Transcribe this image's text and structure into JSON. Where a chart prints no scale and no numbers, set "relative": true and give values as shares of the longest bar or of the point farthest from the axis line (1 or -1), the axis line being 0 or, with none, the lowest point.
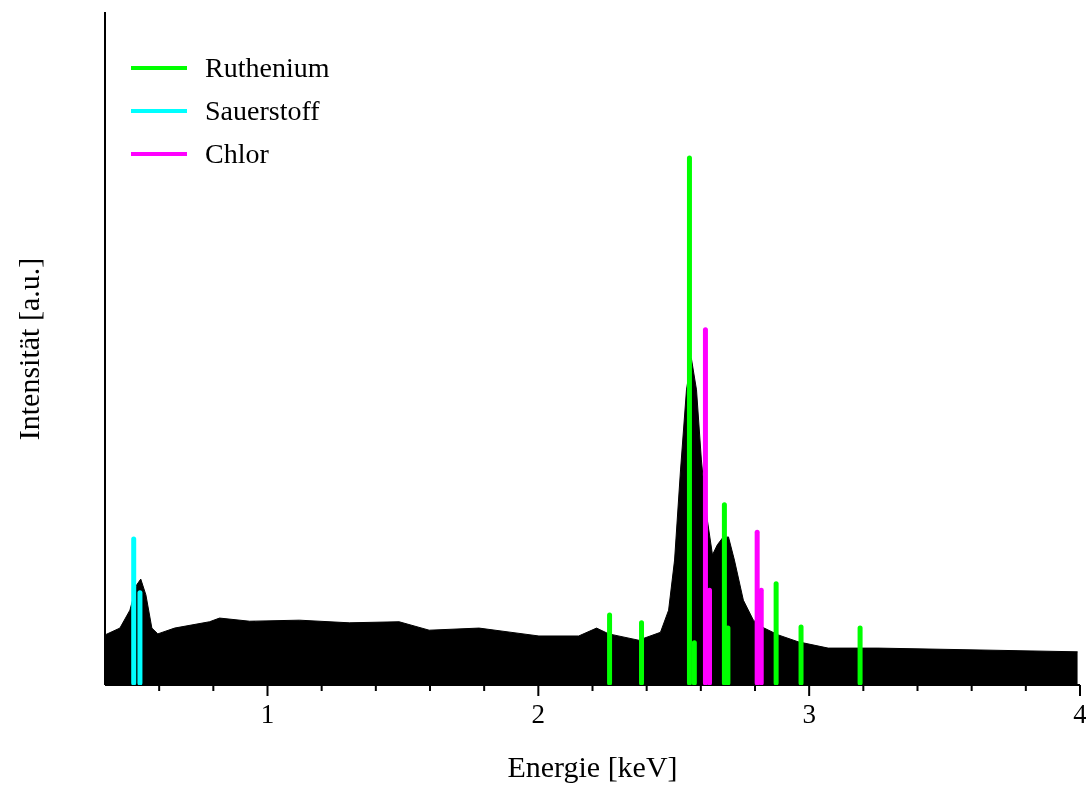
{
  "chart_data": {
    "type": "bar",
    "relative": true,
    "xlabel": "Energie [keV]",
    "ylabel": "Intensität [a.u.]",
    "xlim": [
      0.4,
      4
    ],
    "xticks": [
      {
        "value": 0.6,
        "label": null
      },
      {
        "value": 0.8,
        "label": null
      },
      1,
      {
        "value": 1.2,
        "label": null
      },
      {
        "value": 1.4,
        "label": null
      },
      {
        "value": 1.6,
        "label": null
      },
      {
        "value": 1.8,
        "label": null
      },
      2,
      {
        "value": 2.2,
        "label": null
      },
      {
        "value": 2.4,
        "label": null
      },
      {
        "value": 2.6,
        "label": null
      },
      {
        "value": 2.8,
        "label": null
      },
      3,
      {
        "value": 3.2,
        "label": null
      },
      {
        "value": 3.4,
        "label": null
      },
      {
        "value": 3.6,
        "label": null
      },
      {
        "value": 3.8,
        "label": null
      },
      4
    ],
    "legend": "top left",
    "grid": false,
    "series": [
      {
        "type": "area",
        "color": "#000000",
        "x": [
          0.4,
          0.455,
          0.492,
          0.517,
          0.532,
          0.551,
          0.573,
          0.595,
          0.657,
          0.786,
          0.823,
          0.934,
          1.118,
          1.302,
          1.486,
          1.597,
          1.781,
          2.002,
          2.149,
          2.215,
          2.26,
          2.37,
          2.451,
          2.481,
          2.503,
          2.525,
          2.547,
          2.565,
          2.584,
          2.602,
          2.624,
          2.643,
          2.661,
          2.68,
          2.702,
          2.724,
          2.757,
          2.794,
          2.834,
          2.886,
          2.959,
          3.07,
          3.254,
          3.991
        ],
        "values": [
          0.095,
          0.108,
          0.142,
          0.19,
          0.201,
          0.171,
          0.108,
          0.097,
          0.108,
          0.12,
          0.127,
          0.121,
          0.123,
          0.118,
          0.12,
          0.104,
          0.108,
          0.093,
          0.093,
          0.108,
          0.097,
          0.085,
          0.1,
          0.142,
          0.237,
          0.408,
          0.56,
          0.62,
          0.56,
          0.427,
          0.313,
          0.247,
          0.266,
          0.279,
          0.281,
          0.237,
          0.161,
          0.123,
          0.108,
          0.095,
          0.082,
          0.07,
          0.07,
          0.063
        ]
      },
      {
        "name": "Ruthenium",
        "color": "#00ff00",
        "x": [
          2.263,
          2.381,
          2.558,
          2.576,
          2.687,
          2.7,
          2.878,
          2.97,
          3.188
        ],
        "values": [
          0.133,
          0.118,
          1,
          0.08,
          0.342,
          0.108,
          0.192,
          0.11,
          0.108
        ]
      },
      {
        "name": "Sauerstoff",
        "color": "#00ffff",
        "x": [
          0.506,
          0.529
        ],
        "values": [
          0.277,
          0.175
        ]
      },
      {
        "name": "Chlor",
        "color": "#ff00ff",
        "x": [
          2.617,
          2.632,
          2.808,
          2.823
        ],
        "values": [
          0.674,
          0.18,
          0.29,
          0.18
        ]
      }
    ]
  }
}
